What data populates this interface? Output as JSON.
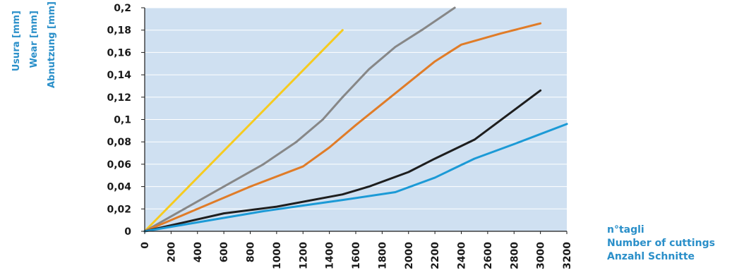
{
  "chart_data": {
    "type": "line",
    "xlabel_lines": [
      "n°tagli",
      "Number of cuttings",
      "Anzahl Schnitte"
    ],
    "ylabel_lines": [
      "Usura [mm]",
      "Wear [mm]",
      "Abnutzung [mm]"
    ],
    "xlim": [
      0,
      3200
    ],
    "ylim": [
      0,
      0.2
    ],
    "x_ticks": [
      0,
      200,
      400,
      600,
      800,
      1000,
      1200,
      1400,
      1600,
      1800,
      2000,
      2200,
      2400,
      2600,
      2800,
      3000,
      3200
    ],
    "y_ticks": [
      0,
      0.02,
      0.04,
      0.06,
      0.08,
      0.1,
      0.12,
      0.14,
      0.16,
      0.18,
      0.2
    ],
    "y_tick_labels": [
      "0",
      "0,02",
      "0,04",
      "0,06",
      "0,08",
      "0,1",
      "0,12",
      "0,14",
      "0,16",
      "0,18",
      "0,2"
    ],
    "grid": "horizontal",
    "plot_background": "#cfe0f1",
    "series": [
      {
        "color": "#f6cb1f",
        "x": [
          0,
          1500
        ],
        "y": [
          0,
          0.18
        ]
      },
      {
        "color": "#878787",
        "x": [
          0,
          300,
          600,
          900,
          1150,
          1350,
          1500,
          1700,
          1900,
          2100,
          2350
        ],
        "y": [
          0,
          0.02,
          0.04,
          0.06,
          0.08,
          0.1,
          0.12,
          0.145,
          0.165,
          0.18,
          0.2
        ]
      },
      {
        "color": "#e07c28",
        "x": [
          0,
          400,
          800,
          1200,
          1400,
          1600,
          1800,
          2000,
          2200,
          2400,
          2700,
          3000
        ],
        "y": [
          0,
          0.02,
          0.04,
          0.058,
          0.075,
          0.095,
          0.114,
          0.133,
          0.152,
          0.167,
          0.177,
          0.186
        ]
      },
      {
        "color": "#1e1e1e",
        "x": [
          0,
          300,
          600,
          1000,
          1500,
          1700,
          2000,
          2200,
          2500,
          2750,
          3000
        ],
        "y": [
          0,
          0.008,
          0.016,
          0.022,
          0.033,
          0.04,
          0.053,
          0.065,
          0.082,
          0.104,
          0.126
        ]
      },
      {
        "color": "#1c9ad6",
        "x": [
          0,
          300,
          600,
          900,
          1200,
          1500,
          1900,
          2200,
          2500,
          2800,
          3200
        ],
        "y": [
          0,
          0.006,
          0.012,
          0.018,
          0.023,
          0.028,
          0.035,
          0.048,
          0.065,
          0.078,
          0.096
        ]
      }
    ]
  }
}
